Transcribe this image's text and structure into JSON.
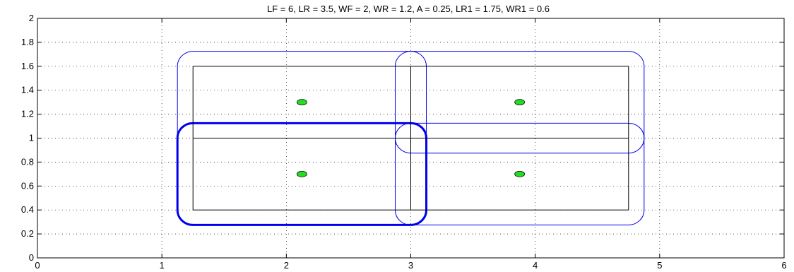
{
  "chart_data": {
    "type": "line",
    "title": "LF = 6,   LR = 3.5,   WF = 2,   WR = 1.2,   A = 0.25,   LR1  = 1.75,   WR1 = 0.6",
    "xlabel": "",
    "ylabel": "",
    "xlim": [
      0,
      6
    ],
    "ylim": [
      0,
      2
    ],
    "x_ticks": [
      "0",
      "1",
      "2",
      "3",
      "4",
      "5",
      "6"
    ],
    "y_ticks": [
      "0",
      "0.2",
      "0.4",
      "0.6",
      "0.8",
      "1",
      "1.2",
      "1.4",
      "1.6",
      "1.8",
      "2"
    ],
    "grid": true,
    "colors": {
      "outline": "#000000",
      "region": "#0000ee",
      "points_fill": "#22dd22",
      "points_edge": "#000000"
    },
    "outer_rectangle": {
      "x": [
        1.25,
        4.75
      ],
      "y": [
        0.4,
        1.6
      ]
    },
    "center_lines": [
      {
        "x": [
          1.25,
          4.75
        ],
        "y": [
          1.0,
          1.0
        ]
      },
      {
        "x": [
          3.0,
          3.0
        ],
        "y": [
          0.4,
          1.6
        ]
      }
    ],
    "rounded_regions": [
      {
        "name": "outer",
        "x": [
          1.25,
          4.75
        ],
        "y": [
          0.4,
          1.6
        ],
        "offset": 0.125,
        "weight": "thin"
      },
      {
        "name": "front-horizontal",
        "x": [
          3.0,
          4.75
        ],
        "y": [
          1.0,
          1.0
        ],
        "offset": 0.125,
        "weight": "thin"
      },
      {
        "name": "rear-vertical",
        "x": [
          3.0,
          3.0
        ],
        "y": [
          0.4,
          1.6
        ],
        "offset": 0.125,
        "weight": "thin"
      },
      {
        "name": "highlighted",
        "x": [
          1.25,
          3.0
        ],
        "y": [
          0.4,
          1.0
        ],
        "offset": 0.125,
        "weight": "thick"
      }
    ],
    "points": [
      {
        "x": 2.125,
        "y": 1.3
      },
      {
        "x": 3.875,
        "y": 1.3
      },
      {
        "x": 2.125,
        "y": 0.7
      },
      {
        "x": 3.875,
        "y": 0.7
      }
    ]
  }
}
